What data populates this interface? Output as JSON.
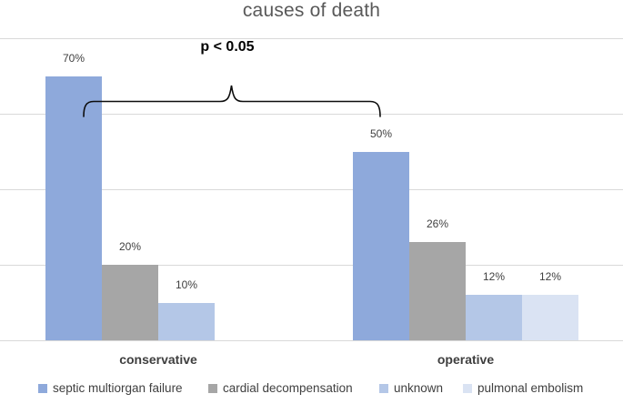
{
  "chart_data": {
    "type": "bar",
    "title": "causes of death",
    "categories": [
      "conservative",
      "operative"
    ],
    "series": [
      {
        "name": "septic multiorgan failure",
        "color": "#8EA9DB",
        "values": [
          70,
          50
        ]
      },
      {
        "name": "cardial decompensation",
        "color": "#A6A6A6",
        "values": [
          20,
          26
        ]
      },
      {
        "name": "unknown",
        "color": "#B4C7E7",
        "values": [
          10,
          12
        ]
      },
      {
        "name": "pulmonal embolism",
        "color": "#DAE3F3",
        "values": [
          null,
          12
        ]
      }
    ],
    "value_suffix": "%",
    "ylim": [
      0,
      80
    ],
    "ytick_step": 20,
    "grid": true,
    "legend_position": "bottom",
    "annotation": {
      "text": "p < 0.05",
      "spans": [
        "conservative",
        "operative"
      ]
    }
  },
  "colors": {
    "gridline": "#D9D9D9",
    "title_text": "#595959",
    "label_text": "#404040",
    "brace": "#0D0D0D"
  }
}
